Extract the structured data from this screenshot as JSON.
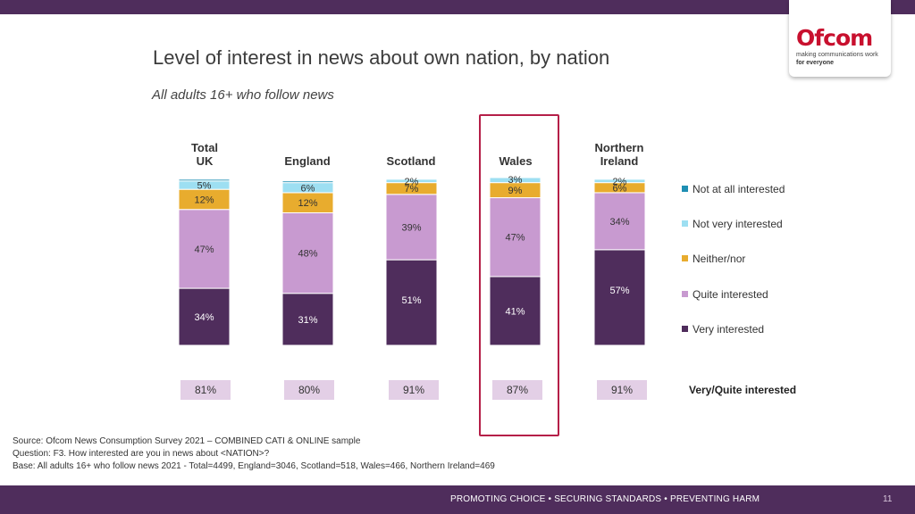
{
  "header": {
    "title": "Level of interest in news about own nation, by nation",
    "subtitle": "All adults 16+ who follow news"
  },
  "logo": {
    "word": "Ofcom",
    "tagline": "making communications work",
    "tagline2": "for everyone"
  },
  "colors": {
    "very": "#4f2d5c",
    "quite": "#c89ad0",
    "neither": "#e8ac2e",
    "not_very": "#9ddff2",
    "not_at_all": "#1f8fb3",
    "highlight": "#b51f48",
    "net_box": "#e3cfe6"
  },
  "chart_data": {
    "type": "bar",
    "stacked": true,
    "percent": true,
    "categories": [
      "Total UK",
      "England",
      "Scotland",
      "Wales",
      "Northern Ireland"
    ],
    "series": [
      {
        "name": "Very interested",
        "key": "very",
        "values": [
          34,
          31,
          51,
          41,
          57
        ]
      },
      {
        "name": "Quite interested",
        "key": "quite",
        "values": [
          47,
          48,
          39,
          47,
          34
        ]
      },
      {
        "name": "Neither/nor",
        "key": "neither",
        "values": [
          12,
          12,
          7,
          9,
          6
        ]
      },
      {
        "name": "Not very interested",
        "key": "not_very",
        "values": [
          5,
          6,
          2,
          3,
          2
        ]
      },
      {
        "name": "Not at all interested",
        "key": "not_at_all",
        "values": [
          1,
          1,
          0,
          0,
          0
        ]
      }
    ],
    "net_label": "Very/Quite interested",
    "net_values": [
      "81%",
      "80%",
      "91%",
      "87%",
      "91%"
    ],
    "highlighted_category": "Wales",
    "ylim": [
      0,
      100
    ]
  },
  "nations": {
    "uk_line1": "Total",
    "uk_line2": "UK",
    "england": "England",
    "scotland": "Scotland",
    "wales": "Wales",
    "ni_line1": "Northern",
    "ni_line2": "Ireland"
  },
  "legend": {
    "not_at_all": "Not at all interested",
    "not_very": "Not very interested",
    "neither": "Neither/nor",
    "quite": "Quite interested",
    "very": "Very interested"
  },
  "source": {
    "line1": "Source: Ofcom News Consumption Survey 2021 – COMBINED CATI & ONLINE sample",
    "line2": "Question: F3. How interested are you in news about <NATION>?",
    "line3": "Base: All adults 16+ who follow news 2021 - Total=4499, England=3046, Scotland=518, Wales=466, Northern Ireland=469"
  },
  "footer": {
    "text": "PROMOTING CHOICE  •  SECURING STANDARDS  •  PREVENTING HARM",
    "page": "11"
  }
}
